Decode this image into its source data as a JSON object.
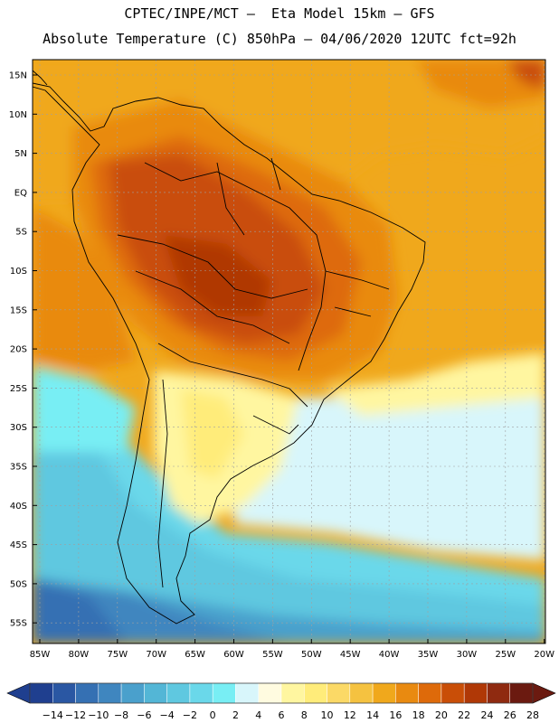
{
  "header": {
    "title_line1": "CPTEC/INPE/MCT –  Eta Model 15km – GFS",
    "title_line2": "Absolute Temperature (C) 850hPa – 04/06/2020 12UTC fct=92h"
  },
  "axes": {
    "lat_ticks": [
      "15N",
      "10N",
      "5N",
      "EQ",
      "5S",
      "10S",
      "15S",
      "20S",
      "25S",
      "30S",
      "35S",
      "40S",
      "45S",
      "50S",
      "55S"
    ],
    "lon_ticks": [
      "85W",
      "80W",
      "75W",
      "70W",
      "65W",
      "60W",
      "55W",
      "50W",
      "45W",
      "40W",
      "35W",
      "30W",
      "25W",
      "20W"
    ]
  },
  "colorbar": {
    "labels": [
      "-14",
      "-12",
      "-10",
      "-8",
      "-6",
      "-4",
      "-2",
      "0",
      "2",
      "4",
      "6",
      "8",
      "10",
      "12",
      "14",
      "16",
      "18",
      "20",
      "22",
      "24",
      "26",
      "28"
    ],
    "colors": [
      "#1f3f8f",
      "#2a57a3",
      "#3570b3",
      "#3f86bf",
      "#4aa0cc",
      "#53b6d6",
      "#5fc8e0",
      "#6ad8ea",
      "#78eef4",
      "#d8f6fb",
      "#fffbe0",
      "#fff6a0",
      "#ffec7a",
      "#fbd966",
      "#f5c240",
      "#f0a81c",
      "#e98a10",
      "#de6a0a",
      "#c94e07",
      "#b03806",
      "#8f2a10",
      "#6b1a10"
    ]
  }
}
